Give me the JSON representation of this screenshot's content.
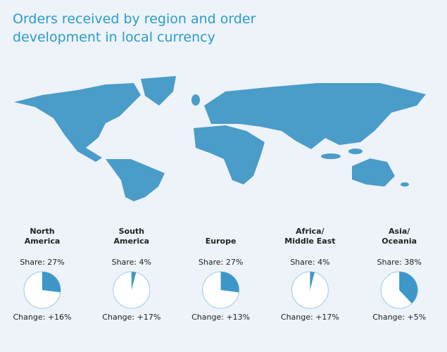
{
  "title": "Orders received by region and order\ndevelopment in local currency",
  "chart_data": {
    "type": "pie",
    "categories": [
      "North\nAmerica",
      "South\nAmerica",
      "Europe",
      "Africa/\nMiddle East",
      "Asia/\nOceania"
    ],
    "values": [
      27,
      4,
      27,
      4,
      38
    ],
    "value_labels": [
      "Share: 27%",
      "Share: 4%",
      "Share: 27%",
      "Share: 4%",
      "Share: 38%"
    ],
    "changes": [
      16,
      17,
      13,
      17,
      5
    ],
    "change_labels": [
      "Change: +16%",
      "Change: +17%",
      "Change: +13%",
      "Change: +17%",
      "Change: +5%"
    ],
    "color": "#3d97c9"
  }
}
